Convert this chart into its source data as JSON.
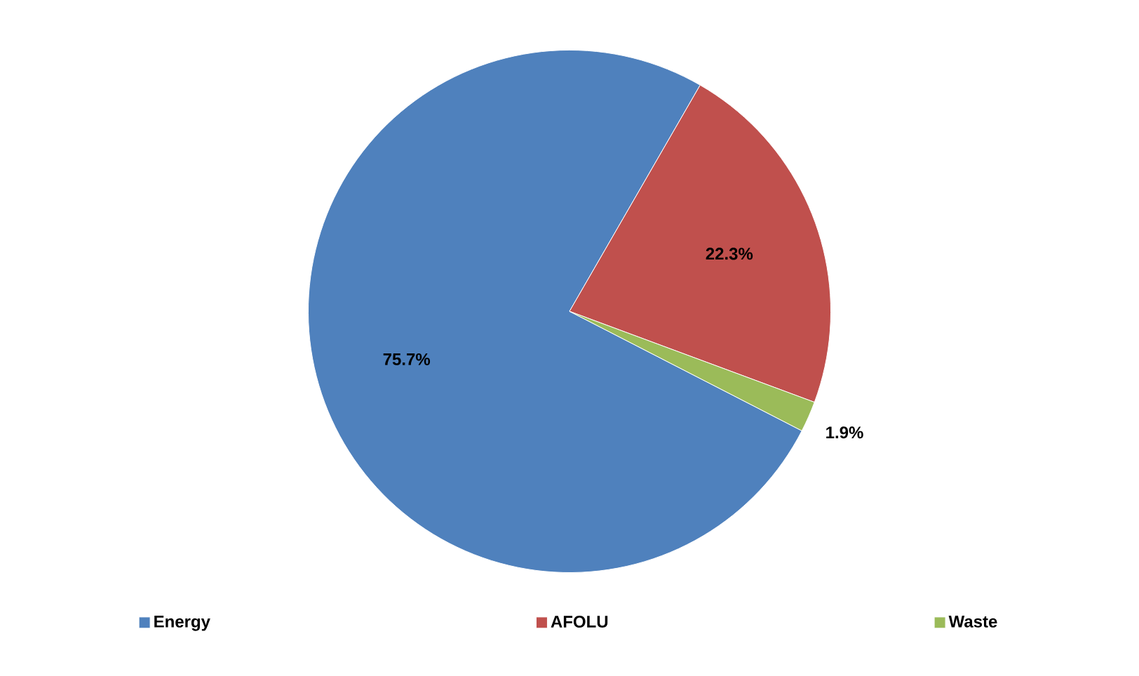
{
  "chart_data": {
    "type": "pie",
    "categories": [
      "Energy",
      "AFOLU",
      "Waste"
    ],
    "values": [
      75.7,
      22.3,
      1.9
    ],
    "colors": [
      "#4f81bd",
      "#c0504d",
      "#9bbb59"
    ],
    "value_labels": [
      "75.7%",
      "22.3%",
      "1.9%"
    ],
    "legend": "bottom"
  }
}
